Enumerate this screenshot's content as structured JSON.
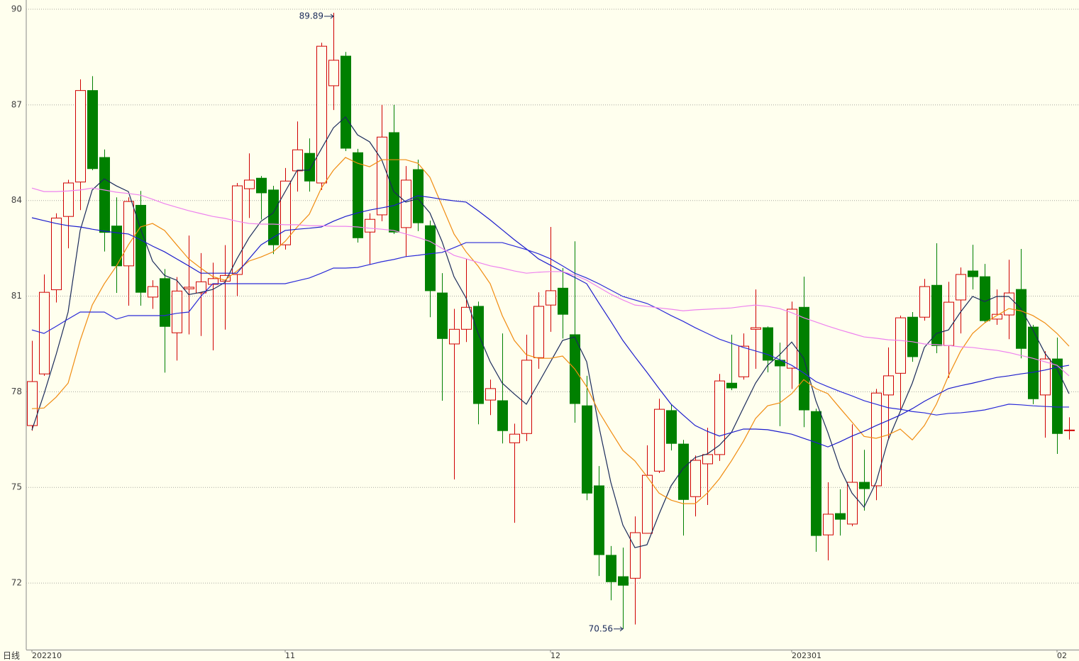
{
  "chart_data": {
    "type": "candlestick",
    "period_label": "日线",
    "categories": [
      "202210",
      null,
      null,
      null,
      null,
      null,
      null,
      null,
      null,
      null,
      null,
      null,
      null,
      null,
      null,
      null,
      null,
      null,
      null,
      null,
      null,
      "11",
      null,
      null,
      null,
      null,
      null,
      null,
      null,
      null,
      null,
      null,
      null,
      null,
      null,
      null,
      null,
      null,
      null,
      null,
      null,
      null,
      null,
      "12",
      null,
      null,
      null,
      null,
      null,
      null,
      null,
      null,
      null,
      null,
      null,
      null,
      null,
      null,
      null,
      null,
      null,
      null,
      null,
      "202301",
      null,
      null,
      null,
      null,
      null,
      null,
      null,
      null,
      null,
      null,
      null,
      null,
      null,
      null,
      null,
      null,
      null,
      null,
      null,
      null,
      null,
      "02",
      null
    ],
    "open": [
      76.94,
      78.56,
      81.2,
      83.5,
      84.58,
      87.45,
      85.35,
      83.2,
      81.95,
      83.85,
      80.97,
      81.55,
      79.85,
      81.23,
      81.1,
      81.37,
      81.47,
      81.68,
      84.37,
      84.7,
      84.33,
      82.61,
      84.93,
      85.48,
      84.55,
      87.6,
      88.53,
      85.5,
      83.01,
      83.55,
      86.13,
      83.15,
      84.97,
      83.21,
      81.1,
      79.5,
      79.96,
      80.68,
      77.74,
      77.72,
      76.4,
      76.69,
      79.07,
      80.72,
      81.25,
      79.79,
      77.56,
      75.05,
      72.87,
      72.2,
      72.15,
      73.56,
      75.51,
      77.41,
      76.36,
      74.71,
      75.74,
      76.03,
      78.27,
      78.47,
      79.96,
      80.01,
      78.99,
      78.74,
      80.65,
      77.38,
      73.51,
      74.18,
      73.85,
      75.16,
      75.05,
      77.9,
      78.58,
      80.34,
      80.34,
      81.34,
      79.45,
      80.88,
      81.79,
      81.61,
      80.28,
      80.41,
      81.21,
      80.03,
      77.9,
      79.03,
      76.8
    ],
    "high": [
      79.6,
      81.68,
      83.6,
      84.65,
      87.8,
      87.9,
      85.6,
      84.1,
      84.1,
      84.3,
      81.5,
      81.85,
      81.6,
      82.9,
      82.35,
      82.05,
      82.6,
      84.55,
      85.48,
      84.77,
      84.46,
      85.02,
      86.48,
      85.95,
      88.95,
      89.89,
      88.66,
      85.62,
      83.6,
      87.0,
      87.0,
      85.08,
      85.28,
      83.37,
      81.72,
      80.6,
      82.17,
      80.83,
      78.38,
      79.83,
      77.0,
      79.79,
      81.12,
      83.17,
      81.88,
      82.72,
      78.5,
      75.67,
      73.16,
      73.11,
      74.09,
      76.32,
      77.78,
      77.6,
      76.49,
      76.0,
      76.87,
      78.56,
      79.79,
      79.83,
      81.21,
      80.05,
      79.54,
      80.83,
      81.61,
      77.47,
      75.16,
      74.94,
      76.98,
      76.18,
      78.09,
      79.39,
      80.39,
      80.5,
      81.54,
      82.66,
      81.45,
      81.9,
      82.61,
      82.01,
      81.21,
      82.14,
      82.48,
      80.1,
      79.27,
      79.7,
      77.2
    ],
    "low": [
      76.78,
      78.5,
      80.8,
      82.5,
      83.7,
      84.95,
      82.4,
      81.1,
      80.7,
      80.7,
      80.6,
      78.6,
      78.98,
      79.8,
      79.75,
      79.3,
      79.95,
      81.0,
      83.45,
      83.4,
      82.32,
      82.46,
      84.28,
      84.28,
      84.33,
      86.84,
      85.55,
      82.68,
      82.0,
      83.35,
      82.95,
      82.23,
      83.04,
      80.34,
      77.72,
      75.25,
      79.56,
      76.98,
      77.27,
      76.38,
      73.89,
      76.45,
      78.72,
      79.88,
      79.67,
      77.03,
      74.6,
      72.22,
      71.46,
      70.56,
      70.7,
      73.56,
      75.45,
      76.16,
      73.49,
      74.09,
      74.45,
      75.83,
      78.05,
      78.38,
      78.72,
      78.61,
      76.92,
      78.09,
      76.89,
      72.98,
      72.71,
      73.49,
      73.78,
      74.27,
      74.6,
      76.49,
      77.43,
      78.94,
      80.23,
      79.21,
      78.43,
      79.83,
      81.21,
      80.16,
      80.1,
      79.65,
      79.05,
      77.61,
      76.56,
      76.05,
      76.5
    ],
    "close": [
      78.32,
      81.12,
      83.45,
      84.55,
      87.45,
      85.0,
      83.0,
      81.95,
      83.97,
      81.12,
      81.3,
      80.05,
      81.16,
      81.28,
      81.45,
      81.55,
      81.65,
      84.46,
      84.64,
      84.24,
      82.61,
      84.61,
      85.59,
      84.61,
      88.84,
      88.4,
      85.64,
      82.83,
      83.41,
      85.99,
      83.01,
      84.64,
      83.3,
      81.17,
      79.67,
      79.96,
      80.65,
      77.63,
      78.1,
      76.78,
      76.67,
      78.99,
      80.68,
      81.17,
      80.43,
      77.63,
      74.82,
      72.89,
      72.04,
      71.93,
      73.58,
      75.38,
      77.45,
      76.38,
      74.62,
      75.85,
      76.03,
      78.34,
      78.12,
      79.43,
      80.01,
      78.99,
      78.81,
      80.59,
      77.43,
      73.49,
      74.16,
      74.0,
      75.16,
      74.96,
      77.96,
      78.5,
      80.32,
      79.1,
      81.3,
      79.45,
      80.81,
      81.68,
      81.61,
      80.23,
      80.43,
      81.1,
      79.36,
      77.78,
      79.03,
      76.69,
      76.8
    ],
    "up_color": "#d00000",
    "down_color": "#008000",
    "lines": [
      {
        "color": "#1a2a5a",
        "values": [
          76.8,
          77.93,
          79.16,
          80.5,
          83.06,
          84.33,
          84.68,
          84.46,
          84.28,
          83.12,
          82.1,
          81.65,
          81.5,
          81.05,
          81.12,
          81.21,
          81.43,
          82.17,
          82.83,
          83.35,
          83.61,
          84.28,
          84.95,
          84.95,
          85.62,
          86.28,
          86.62,
          86.06,
          85.84,
          85.28,
          84.28,
          83.95,
          84.06,
          83.61,
          82.72,
          81.61,
          80.94,
          79.83,
          78.94,
          78.27,
          77.93,
          77.61,
          78.27,
          78.94,
          79.61,
          79.72,
          78.94,
          76.94,
          75.16,
          73.82,
          73.11,
          73.2,
          74.16,
          75.05,
          75.6,
          75.94,
          76.05,
          76.32,
          76.72,
          77.5,
          78.27,
          78.83,
          79.16,
          79.56,
          79.05,
          77.72,
          76.72,
          75.6,
          74.82,
          74.38,
          75.16,
          76.49,
          77.38,
          78.27,
          79.39,
          79.83,
          79.94,
          80.5,
          80.99,
          80.83,
          80.99,
          80.99,
          80.61,
          79.94,
          79.21,
          78.72,
          77.94
        ]
      },
      {
        "color": "#f08c10",
        "values": [
          77.47,
          77.49,
          77.83,
          78.27,
          79.61,
          80.72,
          81.39,
          81.94,
          82.61,
          83.17,
          83.28,
          83.06,
          82.61,
          82.17,
          81.88,
          81.61,
          81.5,
          81.79,
          82.1,
          82.23,
          82.39,
          82.72,
          83.17,
          83.57,
          84.39,
          84.95,
          85.35,
          85.17,
          85.06,
          85.28,
          85.28,
          85.28,
          85.17,
          84.73,
          83.84,
          82.95,
          82.39,
          81.94,
          81.39,
          80.39,
          79.61,
          79.16,
          79.05,
          79.05,
          79.12,
          78.72,
          78.16,
          77.38,
          76.76,
          76.16,
          75.83,
          75.34,
          74.82,
          74.6,
          74.49,
          74.49,
          74.82,
          75.27,
          75.83,
          76.45,
          77.16,
          77.56,
          77.65,
          77.94,
          78.38,
          78.1,
          77.94,
          77.49,
          77.05,
          76.6,
          76.54,
          76.65,
          76.83,
          76.49,
          76.94,
          77.61,
          78.5,
          79.27,
          79.83,
          80.16,
          80.39,
          80.61,
          80.54,
          80.39,
          80.16,
          79.83,
          79.43
        ]
      },
      {
        "color": "#1c1ccc",
        "values": [
          83.46,
          83.37,
          83.28,
          83.21,
          83.17,
          83.1,
          83.04,
          82.99,
          82.95,
          82.77,
          82.57,
          82.39,
          82.17,
          81.95,
          81.72,
          81.72,
          81.72,
          81.72,
          82.17,
          82.61,
          82.84,
          83.06,
          83.1,
          83.13,
          83.17,
          83.35,
          83.5,
          83.61,
          83.7,
          83.77,
          83.84,
          83.99,
          84.15,
          84.1,
          84.04,
          83.99,
          83.95,
          83.68,
          83.39,
          83.08,
          82.77,
          82.48,
          82.17,
          81.97,
          81.77,
          81.59,
          81.39,
          80.79,
          80.21,
          79.61,
          79.1,
          78.61,
          78.1,
          77.61,
          77.27,
          76.94,
          76.76,
          76.61,
          76.72,
          76.83,
          76.83,
          76.81,
          76.74,
          76.67,
          76.54,
          76.41,
          76.27,
          76.43,
          76.61,
          76.76,
          76.94,
          77.1,
          77.27,
          77.47,
          77.7,
          77.9,
          78.1,
          78.19,
          78.27,
          78.36,
          78.45,
          78.5,
          78.56,
          78.61,
          78.68,
          78.77,
          78.83
        ]
      },
      {
        "color": "#2a2ad8",
        "values": [
          79.94,
          79.83,
          80.05,
          80.28,
          80.5,
          80.5,
          80.5,
          80.28,
          80.39,
          80.39,
          80.39,
          80.39,
          80.46,
          80.5,
          80.99,
          81.39,
          81.39,
          81.39,
          81.39,
          81.39,
          81.39,
          81.39,
          81.48,
          81.57,
          81.72,
          81.88,
          81.88,
          81.9,
          81.99,
          82.08,
          82.15,
          82.24,
          82.28,
          82.33,
          82.37,
          82.52,
          82.68,
          82.68,
          82.68,
          82.68,
          82.57,
          82.46,
          82.33,
          82.17,
          81.95,
          81.72,
          81.57,
          81.39,
          81.19,
          80.99,
          80.88,
          80.77,
          80.59,
          80.39,
          80.21,
          80.01,
          79.83,
          79.65,
          79.52,
          79.39,
          79.28,
          79.17,
          79.01,
          78.83,
          78.59,
          78.32,
          78.16,
          78.01,
          77.87,
          77.72,
          77.61,
          77.5,
          77.45,
          77.38,
          77.34,
          77.27,
          77.32,
          77.34,
          77.38,
          77.43,
          77.52,
          77.61,
          77.59,
          77.56,
          77.54,
          77.52,
          77.52
        ]
      },
      {
        "color": "#ee82ee",
        "values": [
          84.39,
          84.28,
          84.28,
          84.3,
          84.33,
          84.39,
          84.33,
          84.26,
          84.22,
          84.17,
          84.04,
          83.9,
          83.79,
          83.68,
          83.59,
          83.5,
          83.44,
          83.35,
          83.28,
          83.26,
          83.26,
          83.24,
          83.24,
          83.21,
          83.21,
          83.19,
          83.19,
          83.17,
          83.13,
          83.1,
          83.06,
          82.95,
          82.84,
          82.72,
          82.5,
          82.28,
          82.17,
          82.06,
          81.95,
          81.88,
          81.79,
          81.72,
          81.75,
          81.77,
          81.77,
          81.66,
          81.5,
          81.28,
          81.06,
          80.88,
          80.72,
          80.68,
          80.63,
          80.59,
          80.54,
          80.57,
          80.59,
          80.61,
          80.63,
          80.68,
          80.72,
          80.68,
          80.61,
          80.48,
          80.32,
          80.19,
          80.06,
          79.94,
          79.83,
          79.72,
          79.68,
          79.63,
          79.61,
          79.57,
          79.5,
          79.48,
          79.45,
          79.41,
          79.39,
          79.34,
          79.3,
          79.23,
          79.14,
          79.05,
          78.94,
          78.83,
          78.5
        ]
      }
    ],
    "ylim": [
      69.91,
      90.29
    ],
    "yticks": [
      72,
      75,
      78,
      81,
      84,
      87,
      90
    ],
    "grid": true
  }
}
